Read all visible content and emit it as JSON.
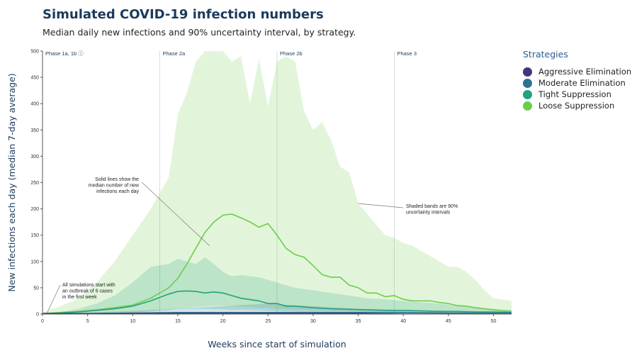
{
  "header": {
    "title": "Simulated COVID-19 infection numbers",
    "subtitle": "Median daily new infections and 90% uncertainty interval, by strategy."
  },
  "legend": {
    "title": "Strategies",
    "items": [
      {
        "label": "Aggressive Elimination",
        "color": "#46337e"
      },
      {
        "label": "Moderate Elimination",
        "color": "#2d7292"
      },
      {
        "label": "Tight Suppression",
        "color": "#25a27d"
      },
      {
        "label": "Loose Suppression",
        "color": "#6ccd4b"
      }
    ]
  },
  "chart_data": {
    "type": "line",
    "title": "Simulated COVID-19 infection numbers",
    "subtitle": "Median daily new infections and 90% uncertainty interval, by strategy.",
    "xlabel": "Weeks since start of simulation",
    "ylabel": "New infections each day (median 7-day average)",
    "xlim": [
      0,
      52
    ],
    "ylim": [
      0,
      500
    ],
    "xticks": [
      0,
      5,
      10,
      15,
      20,
      25,
      30,
      35,
      40,
      45,
      50
    ],
    "yticks": [
      0,
      50,
      100,
      150,
      200,
      250,
      300,
      350,
      400,
      450,
      500
    ],
    "grid": false,
    "legend_position": "right",
    "phases": [
      {
        "label": "Phase 1a, 1b ⓘ",
        "week": 0
      },
      {
        "label": "Phase 2a",
        "week": 13
      },
      {
        "label": "Phase 2b",
        "week": 26
      },
      {
        "label": "Phase 3",
        "week": 39
      }
    ],
    "annotations": [
      {
        "name": "start",
        "lines": [
          "All simulations start with",
          "an outbreak of 6 cases",
          "in the first week"
        ],
        "week": 0.5,
        "value": 2
      },
      {
        "name": "median",
        "lines": [
          "Solid lines show the",
          "median number of new",
          "infections each day"
        ],
        "week": 18.5,
        "value": 130
      },
      {
        "name": "bands",
        "lines": [
          "Shaded bands are 90%",
          "uncertainty intervals"
        ],
        "week": 35,
        "value": 210
      }
    ],
    "series": [
      {
        "name": "Aggressive Elimination",
        "color": "#46337e",
        "x": [
          0,
          5,
          10,
          15,
          20,
          25,
          30,
          35,
          40,
          45,
          52
        ],
        "median": [
          1,
          1,
          1,
          1,
          1,
          1,
          1,
          1,
          0,
          0,
          0
        ],
        "lower": [
          0,
          0,
          0,
          0,
          0,
          0,
          0,
          0,
          0,
          0,
          0
        ],
        "upper": [
          2,
          2,
          3,
          4,
          4,
          4,
          3,
          3,
          2,
          2,
          1
        ]
      },
      {
        "name": "Moderate Elimination",
        "color": "#2d7292",
        "x": [
          0,
          5,
          10,
          15,
          20,
          25,
          30,
          35,
          40,
          45,
          52
        ],
        "median": [
          1,
          1,
          2,
          3,
          3,
          3,
          3,
          3,
          3,
          2,
          2
        ],
        "lower": [
          0,
          0,
          0,
          0,
          0,
          0,
          0,
          0,
          0,
          0,
          0
        ],
        "upper": [
          2,
          3,
          6,
          10,
          15,
          20,
          15,
          10,
          8,
          6,
          4
        ]
      },
      {
        "name": "Tight Suppression",
        "color": "#25a27d",
        "x": [
          0,
          2,
          4,
          6,
          8,
          10,
          12,
          14,
          15,
          16,
          17,
          18,
          19,
          20,
          21,
          22,
          24,
          25,
          26,
          27,
          28,
          30,
          32,
          34,
          36,
          38,
          40,
          42,
          44,
          46,
          48,
          50,
          52
        ],
        "median": [
          1,
          2,
          4,
          7,
          10,
          15,
          25,
          38,
          43,
          44,
          43,
          40,
          42,
          40,
          35,
          30,
          25,
          20,
          20,
          15,
          15,
          12,
          10,
          9,
          8,
          7,
          7,
          6,
          5,
          5,
          4,
          4,
          3
        ],
        "lower": [
          0,
          0,
          1,
          1,
          2,
          3,
          5,
          8,
          9,
          10,
          10,
          10,
          9,
          9,
          8,
          8,
          7,
          6,
          5,
          5,
          4,
          4,
          3,
          3,
          2,
          2,
          2,
          2,
          1,
          1,
          1,
          1,
          1
        ],
        "upper": [
          2,
          4,
          10,
          20,
          35,
          60,
          90,
          95,
          105,
          100,
          95,
          108,
          95,
          80,
          72,
          74,
          70,
          65,
          60,
          55,
          50,
          45,
          40,
          35,
          30,
          28,
          25,
          22,
          20,
          15,
          12,
          10,
          8
        ]
      },
      {
        "name": "Loose Suppression",
        "color": "#6ccd4b",
        "x": [
          0,
          2,
          4,
          6,
          8,
          10,
          12,
          14,
          15,
          16,
          17,
          18,
          19,
          20,
          21,
          22,
          23,
          24,
          25,
          26,
          27,
          28,
          29,
          30,
          31,
          32,
          33,
          34,
          35,
          36,
          37,
          38,
          39,
          40,
          41,
          42,
          43,
          44,
          45,
          46,
          47,
          48,
          49,
          50,
          51,
          52
        ],
        "median": [
          1,
          3,
          5,
          8,
          12,
          17,
          30,
          50,
          68,
          95,
          125,
          155,
          175,
          188,
          190,
          183,
          175,
          165,
          172,
          150,
          125,
          113,
          108,
          92,
          75,
          70,
          70,
          55,
          50,
          40,
          40,
          33,
          35,
          28,
          25,
          25,
          25,
          22,
          20,
          16,
          15,
          12,
          10,
          8,
          6,
          5
        ],
        "lower": [
          0,
          1,
          1,
          2,
          2,
          3,
          5,
          8,
          10,
          12,
          14,
          15,
          16,
          16,
          15,
          14,
          13,
          12,
          11,
          10,
          9,
          8,
          8,
          7,
          7,
          6,
          6,
          5,
          5,
          4,
          4,
          4,
          3,
          3,
          3,
          3,
          2,
          2,
          2,
          2,
          2,
          1,
          1,
          1,
          1,
          1
        ],
        "upper": [
          3,
          15,
          30,
          60,
          100,
          150,
          200,
          260,
          380,
          420,
          480,
          500,
          500,
          500,
          480,
          490,
          400,
          485,
          395,
          480,
          490,
          480,
          385,
          350,
          365,
          330,
          280,
          270,
          210,
          190,
          170,
          150,
          145,
          135,
          130,
          120,
          110,
          100,
          90,
          90,
          80,
          65,
          45,
          30,
          28,
          25
        ]
      }
    ]
  }
}
